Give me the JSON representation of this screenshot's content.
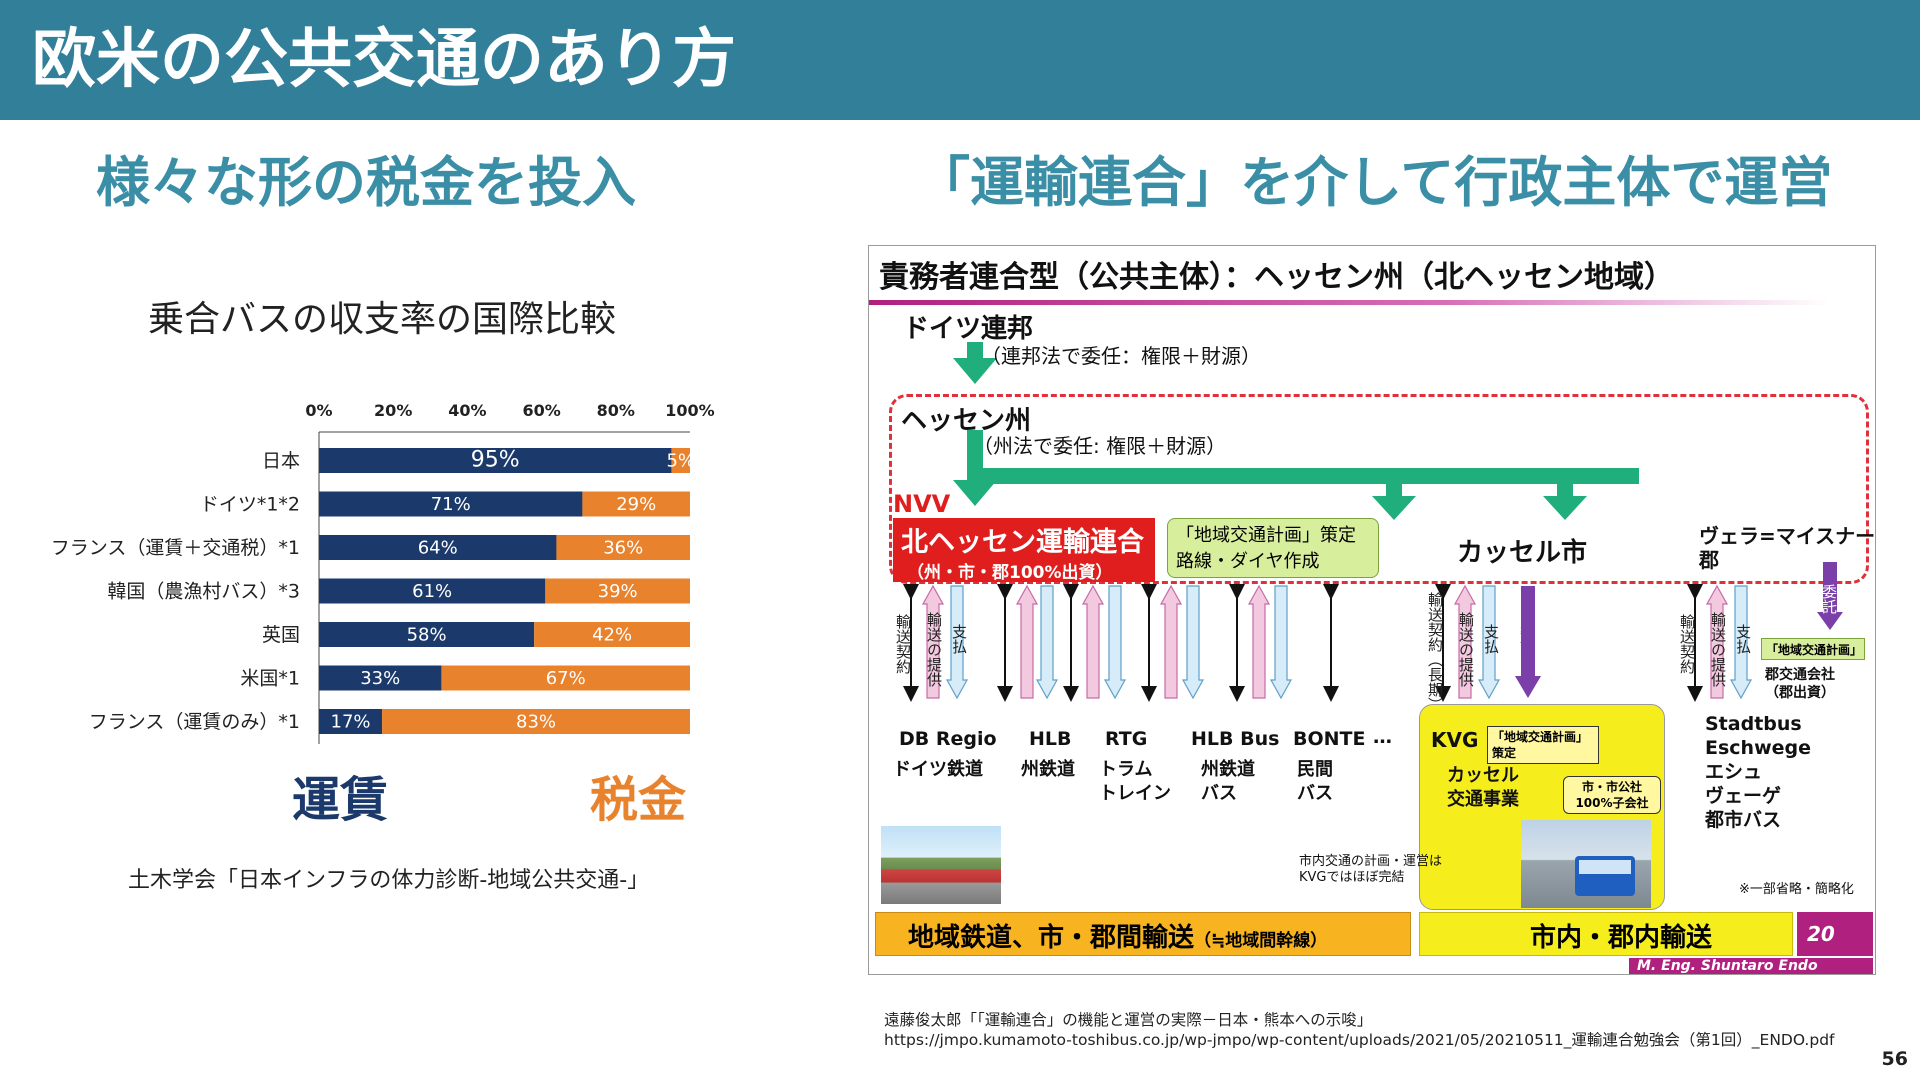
{
  "header": {
    "title": "欧米の公共交通のあり方"
  },
  "left": {
    "heading": "様々な形の税金を投入",
    "chart_title": "乗合バスの収支率の国際比較",
    "legend_fare": "運賃",
    "legend_tax": "税金",
    "source": "土木学会「日本インフラの体力診断-地域公共交通-」"
  },
  "colors": {
    "header": "#327f9a",
    "heading": "#3a8ea6",
    "fare": "#1b3a6b",
    "tax": "#e8822d"
  },
  "chart_data": {
    "type": "bar",
    "orientation": "horizontal",
    "stacked": true,
    "categories": [
      "日本",
      "ドイツ*1*2",
      "フランス（運賃＋交通税）*1",
      "韓国（農漁村バス）*3",
      "英国",
      "米国*1",
      "フランス（運賃のみ）*1"
    ],
    "series": [
      {
        "name": "運賃",
        "values": [
          95,
          71,
          64,
          61,
          58,
          33,
          17
        ],
        "labels": [
          "95%",
          "71%",
          "64%",
          "61%",
          "58%",
          "33%",
          "17%"
        ],
        "color": "#1b3a6b"
      },
      {
        "name": "税金",
        "values": [
          5,
          29,
          36,
          39,
          42,
          67,
          83
        ],
        "labels": [
          "5%",
          "29%",
          "36%",
          "39%",
          "42%",
          "67%",
          "83%"
        ],
        "color": "#e8822d"
      }
    ],
    "xticks": [
      "0%",
      "20%",
      "40%",
      "60%",
      "80%",
      "100%"
    ],
    "xlim": [
      0,
      100
    ],
    "axis_position": "top",
    "grid": false
  },
  "right": {
    "heading": "「運輸連合」を介して行政主体で運営",
    "diagram": {
      "title": "責務者連合型（公共主体）：ヘッセン州（北ヘッセン地域）",
      "federal": "ドイツ連邦",
      "federal_note": "（連邦法で委任：権限＋財源）",
      "state": "ヘッセン州",
      "state_note": "（州法で委任: 権限＋財源）",
      "nvv": "NVV",
      "nvv_name": "北ヘッセン運輸連合",
      "nvv_sub": "（州・市・郡100%出資）",
      "plan_line1": "「地域交通計画」策定",
      "plan_line2": "路線・ダイヤ作成",
      "kassel_city": "カッセル市",
      "vellmar_line1": "ヴェラ=マイスナー",
      "vellmar_line2": "郡",
      "v_contract": "輸送契約",
      "v_service": "輸送の提供",
      "v_payment": "支払",
      "v_contract_long": "輸送契約（長期）",
      "v_delegate": "委託",
      "operators": [
        {
          "name": "DB Regio",
          "type": "ドイツ鉄道"
        },
        {
          "name": "HLB",
          "type": "州鉄道"
        },
        {
          "name": "RTG",
          "type": "トラム\nトレイン"
        },
        {
          "name": "HLB Bus",
          "type": "州鉄道\nバス"
        },
        {
          "name": "BONTE",
          "type": "民間\nバス"
        }
      ],
      "ellipsis": "…",
      "kvg": "KVG",
      "kvg_plan": "「地域交通計画」策定",
      "kvg_name": "カッセル\n交通事業",
      "kvg_sub": "市・市公社\n100%子会社",
      "kvg_note": "市内交通の計画・運営は\nKVGではほぼ完結",
      "gun_plan": "「地域交通計画」",
      "gun_company": "郡交通会社\n（郡出資）",
      "stadtbus": "Stadtbus\nEschwege\nエシュ\nヴェーゲ\n都市バス",
      "omit_note": "※一部省略・簡略化",
      "banner_left": "地域鉄道、市・郡間輸送",
      "banner_left_small": "（≒地域間幹線）",
      "banner_right": "市内・郡内輸送",
      "page": "20",
      "author": "M. Eng. Shuntaro Endo"
    },
    "source_line1": "遠藤俊太郎「「運輸連合」の機能と運営の実際－日本・熊本への示唆」",
    "source_line2": "https://jmpo.kumamoto-toshibus.co.jp/wp-jmpo/wp-content/uploads/2021/05/20210511_運輸連合勉強会（第1回）_ENDO.pdf"
  },
  "page_number": "56"
}
